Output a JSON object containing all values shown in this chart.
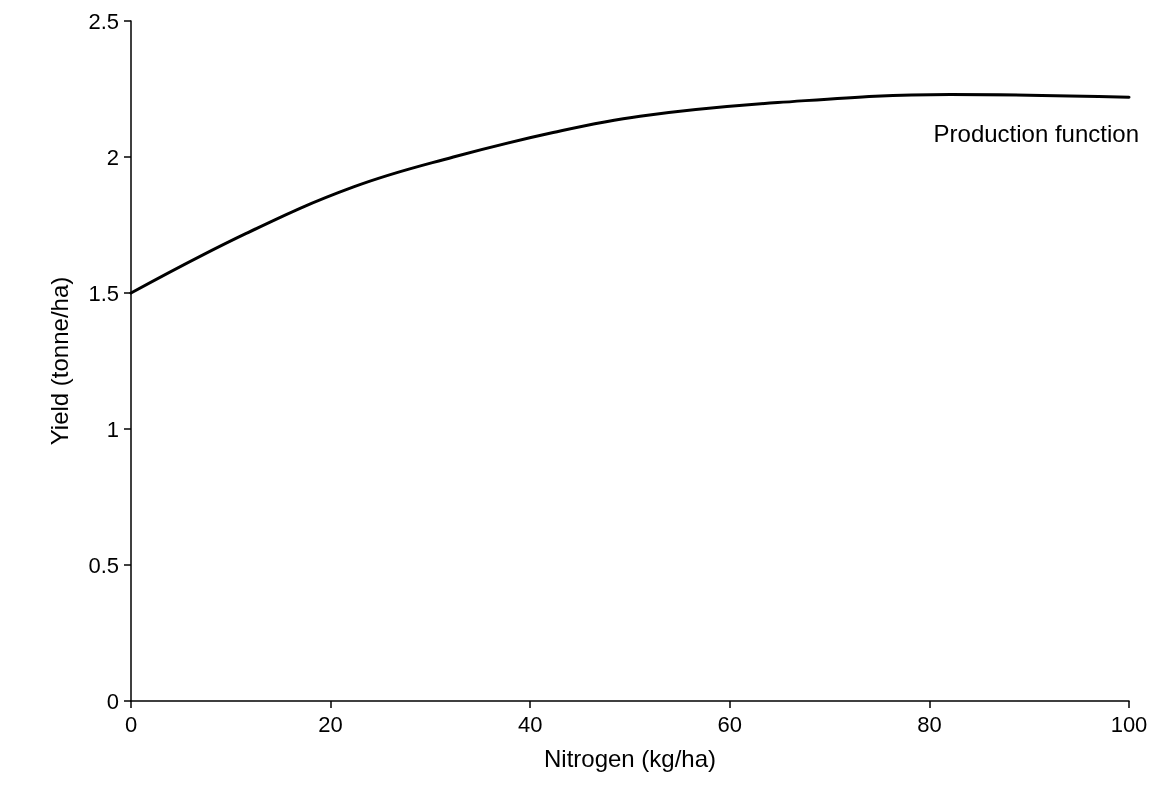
{
  "chart_data": {
    "type": "line",
    "xlabel": "Nitrogen (kg/ha)",
    "ylabel": "Yield (tonne/ha)",
    "xlim": [
      0,
      100
    ],
    "xticks": [
      0,
      20,
      40,
      60,
      80,
      100
    ],
    "ylim": [
      0,
      2.5
    ],
    "yticks": [
      0,
      0.5,
      1,
      1.5,
      2,
      2.5
    ],
    "grid": false,
    "legend": false,
    "marker": "none",
    "line_style": "solid",
    "series": [
      {
        "name": "Production function",
        "color": "#000000",
        "x": [
          0,
          11.6,
          22.3,
          32.3,
          42.3,
          51,
          64.8,
          82.1,
          100
        ],
        "values": [
          1.5,
          1.72,
          1.89,
          2.0,
          2.09,
          2.15,
          2.2,
          2.23,
          2.22
        ]
      }
    ]
  }
}
